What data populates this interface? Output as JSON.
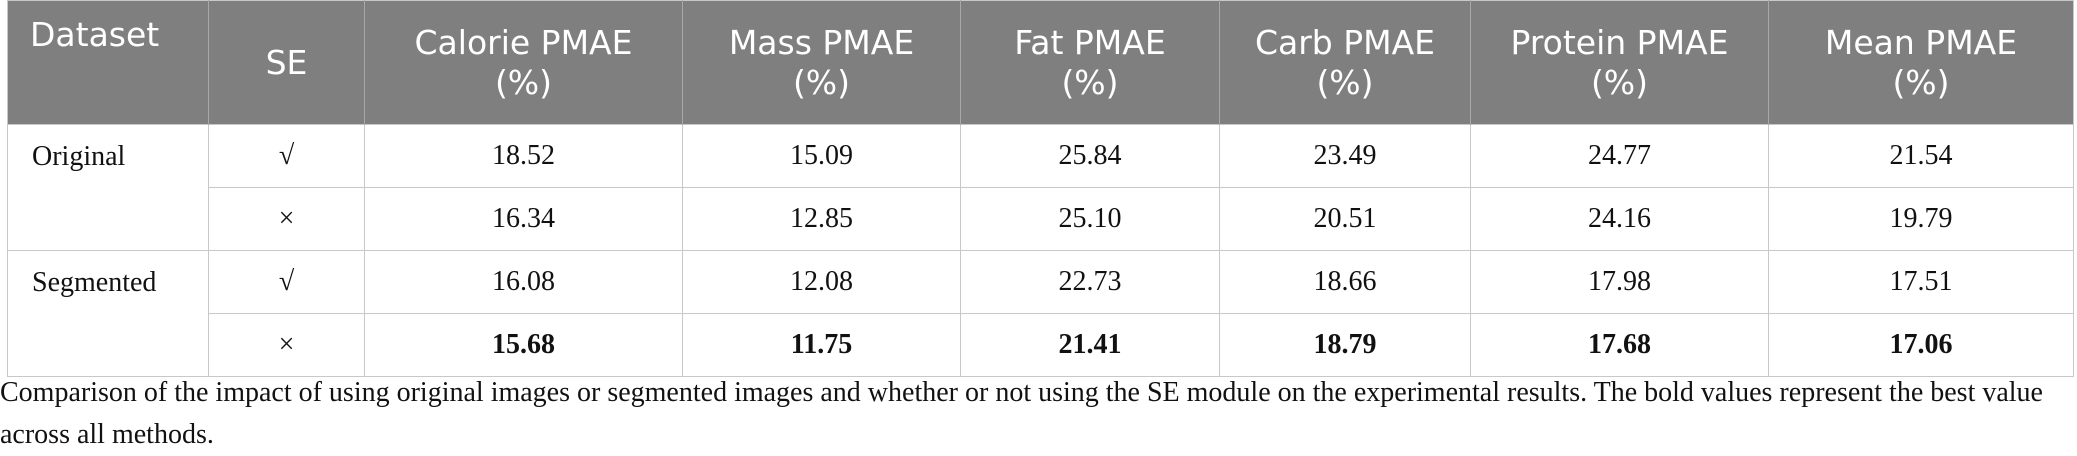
{
  "table": {
    "header": [
      "Dataset",
      "SE",
      "Calorie PMAE\n(%)",
      "Mass PMAE\n(%)",
      "Fat PMAE\n(%)",
      "Carb PMAE\n(%)",
      "Protein PMAE\n(%)",
      "Mean PMAE\n(%)"
    ],
    "groups": [
      {
        "dataset": "Original",
        "rows": [
          {
            "cells": [
              "√",
              "18.52",
              "15.09",
              "25.84",
              "23.49",
              "24.77",
              "21.54"
            ],
            "bold": false
          },
          {
            "cells": [
              "×",
              "16.34",
              "12.85",
              "25.10",
              "20.51",
              "24.16",
              "19.79"
            ],
            "bold": false
          }
        ]
      },
      {
        "dataset": "Segmented",
        "rows": [
          {
            "cells": [
              "√",
              "16.08",
              "12.08",
              "22.73",
              "18.66",
              "17.98",
              "17.51"
            ],
            "bold": false
          },
          {
            "cells": [
              "×",
              "15.68",
              "11.75",
              "21.41",
              "18.79",
              "17.68",
              "17.06"
            ],
            "bold": true
          }
        ]
      }
    ]
  },
  "caption": "Comparison of the impact of using original images or segmented images and whether or not using the SE module on the experimental results. The bold values represent the best value across all methods."
}
